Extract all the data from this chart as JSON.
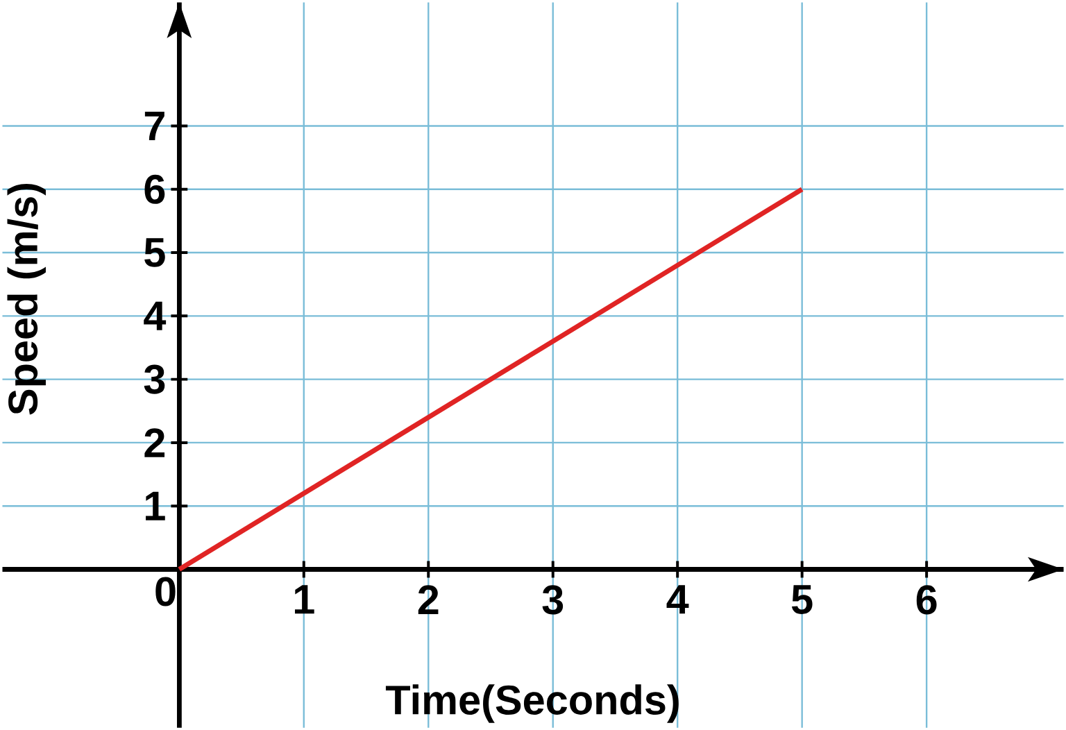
{
  "chart_data": {
    "type": "line",
    "xlabel": "Time(Seconds)",
    "ylabel": "Speed (m/s)",
    "x": [
      0,
      5
    ],
    "series": [
      {
        "color": "#e02424",
        "values": [
          0,
          6
        ]
      }
    ],
    "xlim": [
      -1.42,
      7.1
    ],
    "ylim": [
      -2.5,
      8.95
    ],
    "xticks": [
      0,
      1,
      2,
      3,
      4,
      5,
      6
    ],
    "yticks": [
      1,
      2,
      3,
      4,
      5,
      6,
      7
    ],
    "grid": true
  }
}
